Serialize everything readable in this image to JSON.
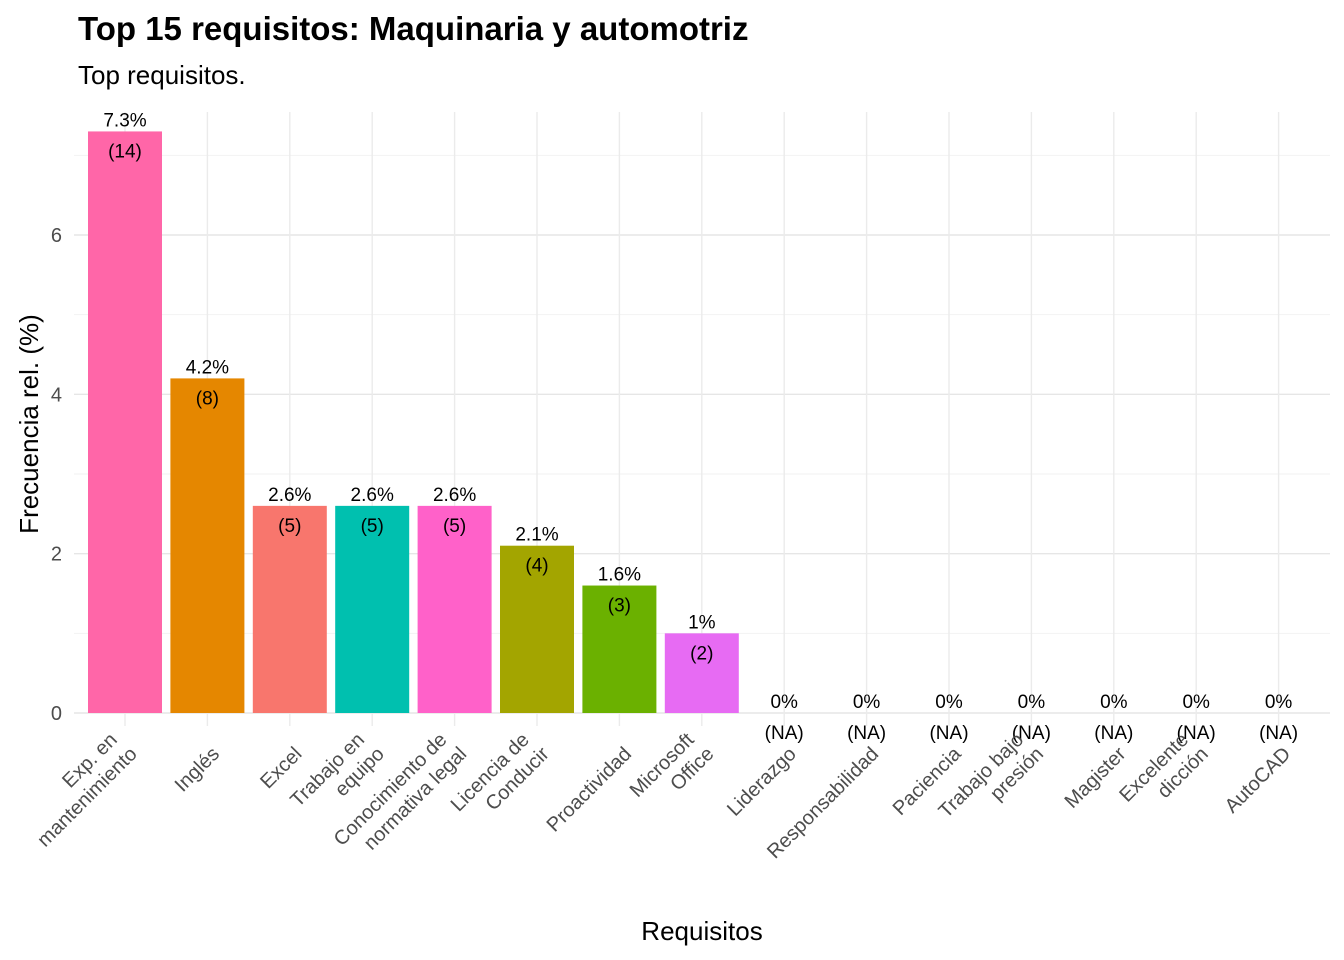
{
  "chart_data": {
    "type": "bar",
    "title": "Top 15 requisitos: Maquinaria y automotriz",
    "subtitle": "Top requisitos.",
    "xlabel": "Requisitos",
    "ylabel": "Frecuencia rel. (%)",
    "ylim": [
      0,
      7.3
    ],
    "yticks": [
      0,
      2,
      4,
      6
    ],
    "grid": true,
    "legend": "none",
    "categories": [
      [
        "Exp. en",
        "mantenimiento"
      ],
      [
        "Inglés"
      ],
      [
        "Excel"
      ],
      [
        "Trabajo en",
        "equipo"
      ],
      [
        "Conocimiento de",
        "normativa legal"
      ],
      [
        "Licencia de",
        "Conducir"
      ],
      [
        "Proactividad"
      ],
      [
        "Microsoft",
        "Office"
      ],
      [
        "Liderazgo"
      ],
      [
        "Responsabilidad"
      ],
      [
        "Paciencia"
      ],
      [
        "Trabajo bajo",
        "presión"
      ],
      [
        "Magister"
      ],
      [
        "Excelente",
        "dicción"
      ],
      [
        "AutoCAD"
      ]
    ],
    "values": [
      7.3,
      4.2,
      2.6,
      2.6,
      2.6,
      2.1,
      1.6,
      1,
      0,
      0,
      0,
      0,
      0,
      0,
      0
    ],
    "percent_labels": [
      "7.3%",
      "4.2%",
      "2.6%",
      "2.6%",
      "2.6%",
      "2.1%",
      "1.6%",
      "1%",
      "0%",
      "0%",
      "0%",
      "0%",
      "0%",
      "0%",
      "0%"
    ],
    "count_labels": [
      "(14)",
      "(8)",
      "(5)",
      "(5)",
      "(5)",
      "(4)",
      "(3)",
      "(2)",
      "(NA)",
      "(NA)",
      "(NA)",
      "(NA)",
      "(NA)",
      "(NA)",
      "(NA)"
    ],
    "colors": [
      "#FF66A8",
      "#E58700",
      "#F8766D",
      "#00C0AF",
      "#FF61C9",
      "#A3A500",
      "#6BB100",
      "#E76BF3",
      "#00BA38",
      "#00BC59",
      "#00B0F6",
      "#619CFF",
      "#B983FF",
      "#00BFC4",
      "#C99800"
    ]
  }
}
